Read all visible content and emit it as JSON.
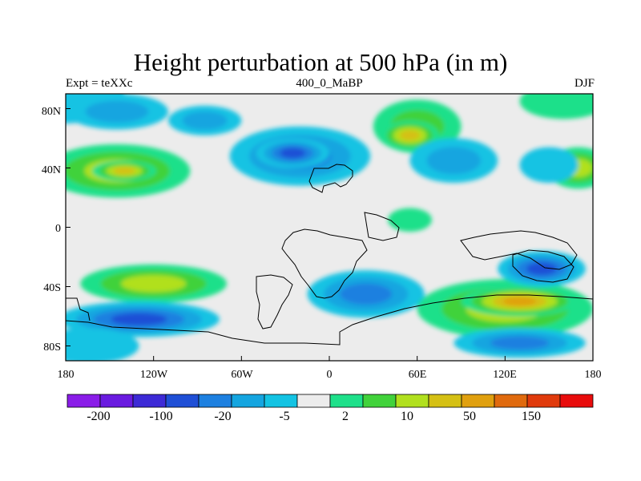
{
  "title": "Height perturbation at 500 hPa (in m)",
  "left_string": "Expt = teXXc",
  "center_string": "400_0_MaBP",
  "right_string": "DJF",
  "y_ticks": [
    "80N",
    "40N",
    "0",
    "40S",
    "80S"
  ],
  "x_ticks": [
    "180",
    "120W",
    "60W",
    "0",
    "60E",
    "120E",
    "180"
  ],
  "colorbar": {
    "labels": [
      "-200",
      "-100",
      "-20",
      "-5",
      "2",
      "10",
      "50",
      "150"
    ],
    "colors": [
      "#8a1de8",
      "#6a1be0",
      "#3d2ad6",
      "#1f4fd6",
      "#1d80e0",
      "#14a5e0",
      "#13c3e3",
      "#ececec",
      "#1ee08a",
      "#41d23b",
      "#b1e01e",
      "#d5c014",
      "#e0a00f",
      "#e06a0e",
      "#e03a0c",
      "#e80c0c"
    ]
  },
  "map_data": {
    "lon_range": [
      -180,
      180
    ],
    "lat_range": [
      -90,
      90
    ],
    "colors": {
      "neutral": "#ececec",
      "n1": "#13c3e3",
      "n2": "#14a5e0",
      "n3": "#1d80e0",
      "n4": "#1f4fd6",
      "p1": "#1ee08a",
      "p2": "#41d23b",
      "p3": "#b1e01e",
      "p4": "#d5c014",
      "p5": "#e0a00f",
      "p6": "#e06a0e",
      "coast": "#000000"
    },
    "anomalies": [
      {
        "lon": -180,
        "lat": 90,
        "dlon": 40,
        "dlat": 20,
        "level": -1
      },
      {
        "lon": -145,
        "lat": 78,
        "dlon": 35,
        "dlat": 12,
        "level": -2
      },
      {
        "lon": -85,
        "lat": 72,
        "dlon": 25,
        "dlat": 10,
        "level": -2
      },
      {
        "lon": 60,
        "lat": 68,
        "dlon": 30,
        "dlat": 18,
        "level": 2
      },
      {
        "lon": 55,
        "lat": 62,
        "dlon": 20,
        "dlat": 10,
        "level": 4
      },
      {
        "lon": 160,
        "lat": 85,
        "dlon": 30,
        "dlat": 12,
        "level": 1
      },
      {
        "lon": 170,
        "lat": 40,
        "dlon": 22,
        "dlat": 14,
        "level": 3
      },
      {
        "lon": -145,
        "lat": 38,
        "dlon": 50,
        "dlat": 18,
        "level": 3
      },
      {
        "lon": -140,
        "lat": 38,
        "dlon": 22,
        "dlat": 7,
        "level": 4
      },
      {
        "lon": -20,
        "lat": 48,
        "dlon": 48,
        "dlat": 20,
        "level": -3
      },
      {
        "lon": -25,
        "lat": 50,
        "dlon": 25,
        "dlat": 10,
        "level": -4
      },
      {
        "lon": 85,
        "lat": 45,
        "dlon": 30,
        "dlat": 15,
        "level": -2
      },
      {
        "lon": 150,
        "lat": 42,
        "dlon": 20,
        "dlat": 12,
        "level": -1
      },
      {
        "lon": 55,
        "lat": 5,
        "dlon": 15,
        "dlat": 8,
        "level": 1
      },
      {
        "lon": -120,
        "lat": -38,
        "dlon": 50,
        "dlat": 13,
        "level": 3
      },
      {
        "lon": -130,
        "lat": -62,
        "dlon": 55,
        "dlat": 12,
        "level": -4
      },
      {
        "lon": 25,
        "lat": -45,
        "dlon": 40,
        "dlat": 16,
        "level": -3
      },
      {
        "lon": 120,
        "lat": -55,
        "dlon": 60,
        "dlat": 20,
        "level": 3
      },
      {
        "lon": 130,
        "lat": -50,
        "dlon": 40,
        "dlat": 10,
        "level": 5
      },
      {
        "lon": 130,
        "lat": -78,
        "dlon": 45,
        "dlat": 10,
        "level": -3
      },
      {
        "lon": -165,
        "lat": -80,
        "dlon": 35,
        "dlat": 12,
        "level": -1
      },
      {
        "lon": 145,
        "lat": -28,
        "dlon": 30,
        "dlat": 12,
        "level": -4
      }
    ]
  }
}
